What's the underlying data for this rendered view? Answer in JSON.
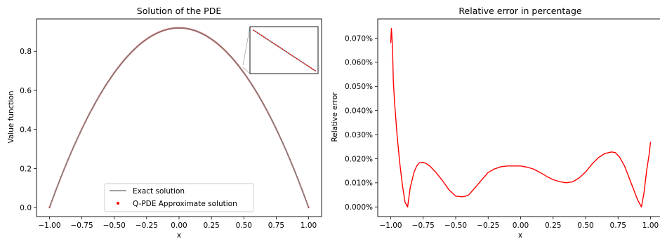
{
  "chart_data": [
    {
      "type": "line",
      "title": "Solution of the PDE",
      "xlabel": "x",
      "ylabel": "Value function",
      "xlim": [
        -1.1,
        1.1
      ],
      "ylim": [
        -0.046,
        0.966
      ],
      "xticks": [
        -1.0,
        -0.75,
        -0.5,
        -0.25,
        0.0,
        0.25,
        0.5,
        0.75,
        1.0
      ],
      "xtick_labels": [
        "−1.00",
        "−0.75",
        "−0.50",
        "−0.25",
        "0.00",
        "0.25",
        "0.50",
        "0.75",
        "1.00"
      ],
      "yticks": [
        0.0,
        0.2,
        0.4,
        0.6,
        0.8
      ],
      "ytick_labels": [
        "0.0",
        "0.2",
        "0.4",
        "0.6",
        "0.8"
      ],
      "grid": false,
      "legend": "lower-center",
      "inset": "zoomed view near x=0.55–0.70, top-right",
      "curve": {
        "type": "parabola",
        "peak_x": 0.0,
        "peak_y": 0.92,
        "endpoints": [
          [
            -1.0,
            0.0
          ],
          [
            1.0,
            0.0
          ]
        ]
      },
      "series": [
        {
          "name": "Exact solution",
          "style": "line",
          "color": "#808080"
        },
        {
          "name": "Q-PDE Approximate solution",
          "style": "scatter",
          "color": "#ff0000"
        }
      ]
    },
    {
      "type": "line",
      "title": "Relative error in percentage",
      "xlabel": "x",
      "ylabel": "Relative error",
      "xlim": [
        -1.1,
        1.1
      ],
      "ylim": [
        -4e-05,
        0.00078
      ],
      "xticks": [
        -1.0,
        -0.75,
        -0.5,
        -0.25,
        0.0,
        0.25,
        0.5,
        0.75,
        1.0
      ],
      "xtick_labels": [
        "−1.00",
        "−0.75",
        "−0.50",
        "−0.25",
        "0.00",
        "0.25",
        "0.50",
        "0.75",
        "1.00"
      ],
      "yticks": [
        0.0,
        0.0001,
        0.0002,
        0.0003,
        0.0004,
        0.0005,
        0.0006,
        0.0007
      ],
      "ytick_labels": [
        "0.000%",
        "0.010%",
        "0.020%",
        "0.030%",
        "0.040%",
        "0.050%",
        "0.060%",
        "0.070%"
      ],
      "grid": false,
      "series": [
        {
          "name": "",
          "color": "#ff0000",
          "x": [
            -1.0,
            -0.995,
            -0.99,
            -0.985,
            -0.98,
            -0.97,
            -0.95,
            -0.93,
            -0.91,
            -0.89,
            -0.87,
            -0.85,
            -0.82,
            -0.8,
            -0.78,
            -0.75,
            -0.72,
            -0.7,
            -0.65,
            -0.6,
            -0.55,
            -0.5,
            -0.45,
            -0.42,
            -0.4,
            -0.35,
            -0.3,
            -0.25,
            -0.2,
            -0.15,
            -0.1,
            -0.05,
            0.0,
            0.05,
            0.1,
            0.15,
            0.2,
            0.25,
            0.3,
            0.35,
            0.4,
            0.45,
            0.5,
            0.55,
            0.6,
            0.65,
            0.7,
            0.73,
            0.76,
            0.8,
            0.85,
            0.9,
            0.93,
            0.95,
            0.97,
            0.99,
            1.0
          ],
          "y": [
            0.00068,
            0.00074,
            0.0007,
            0.00063,
            0.00052,
            0.00043,
            0.00029,
            0.00018,
            9e-05,
            2e-05,
            0.0,
            8e-05,
            0.000145,
            0.00017,
            0.000183,
            0.000185,
            0.000178,
            0.00017,
            0.000142,
            0.000108,
            7e-05,
            4.5e-05,
            4.2e-05,
            4.5e-05,
            5e-05,
            8e-05,
            0.000112,
            0.000143,
            0.000158,
            0.000167,
            0.00017,
            0.00017,
            0.00017,
            0.000165,
            0.000157,
            0.000143,
            0.000127,
            0.000113,
            0.000105,
            0.0001,
            0.000104,
            0.00012,
            0.000145,
            0.000178,
            0.000205,
            0.000222,
            0.000228,
            0.000225,
            0.000208,
            0.00017,
            0.0001,
            3e-05,
            0.0,
            6e-05,
            0.00015,
            0.00022,
            0.00027
          ]
        }
      ]
    }
  ]
}
